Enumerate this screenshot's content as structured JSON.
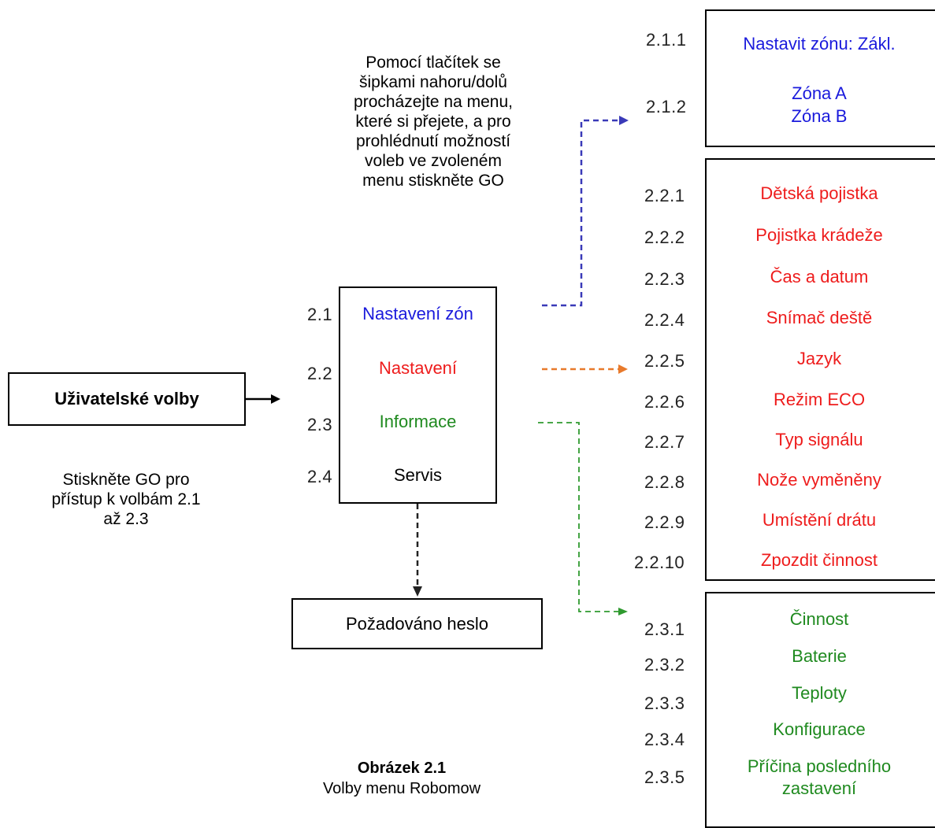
{
  "instructions_top": [
    "Pomocí tlačítek se",
    "šipkami nahoru/dolů",
    "procházejte na menu,",
    "které si přejete, a pro",
    "prohlédnutí možností",
    "voleb ve zvoleném",
    "menu stiskněte GO"
  ],
  "instructions_left": [
    "Stiskněte GO pro",
    "přístup k volbám 2.1",
    "až 2.3"
  ],
  "user_options": {
    "label": "Uživatelské volby"
  },
  "main_menu": {
    "items": [
      {
        "num": "2.1",
        "label": "Nastavení zón",
        "color": "#1a1adc"
      },
      {
        "num": "2.2",
        "label": "Nastavení",
        "color": "#ee1c1c"
      },
      {
        "num": "2.3",
        "label": "Informace",
        "color": "#1f8a1f"
      },
      {
        "num": "2.4",
        "label": "Servis",
        "color": "#000000"
      }
    ]
  },
  "password_box": {
    "label": "Požadováno heslo"
  },
  "zones_menu": {
    "items": [
      {
        "num": "2.1.1",
        "label": "Nastavit zónu: Zákl."
      },
      {
        "num": "2.1.2",
        "label": "Zóna A",
        "label2": "Zóna B"
      }
    ]
  },
  "settings_menu": {
    "items": [
      {
        "num": "2.2.1",
        "label": "Dětská pojistka"
      },
      {
        "num": "2.2.2",
        "label": "Pojistka krádeže"
      },
      {
        "num": "2.2.3",
        "label": "Čas a datum"
      },
      {
        "num": "2.2.4",
        "label": "Snímač deště"
      },
      {
        "num": "2.2.5",
        "label": "Jazyk"
      },
      {
        "num": "2.2.6",
        "label": "Režim ECO"
      },
      {
        "num": "2.2.7",
        "label": "Typ signálu"
      },
      {
        "num": "2.2.8",
        "label": "Nože vyměněny"
      },
      {
        "num": "2.2.9",
        "label": "Umístění drátu"
      },
      {
        "num": "2.2.10",
        "label": "Zpozdit činnost"
      }
    ]
  },
  "info_menu": {
    "items": [
      {
        "num": "2.3.1",
        "label": "Činnost"
      },
      {
        "num": "2.3.2",
        "label": "Baterie"
      },
      {
        "num": "2.3.3",
        "label": "Teploty"
      },
      {
        "num": "2.3.4",
        "label": "Konfigurace"
      },
      {
        "num": "2.3.5",
        "label": "Příčina posledního",
        "label2": "zastavení"
      }
    ]
  },
  "caption": {
    "title": "Obrázek 2.1",
    "subtitle": "Volby menu Robomow"
  },
  "colors": {
    "blue": "#1a1adc",
    "red": "#ee1c1c",
    "green": "#1f8a1f",
    "orange": "#e87a2c",
    "dash_blue": "#3a3ab8",
    "dash_green": "#2f9a2f"
  }
}
